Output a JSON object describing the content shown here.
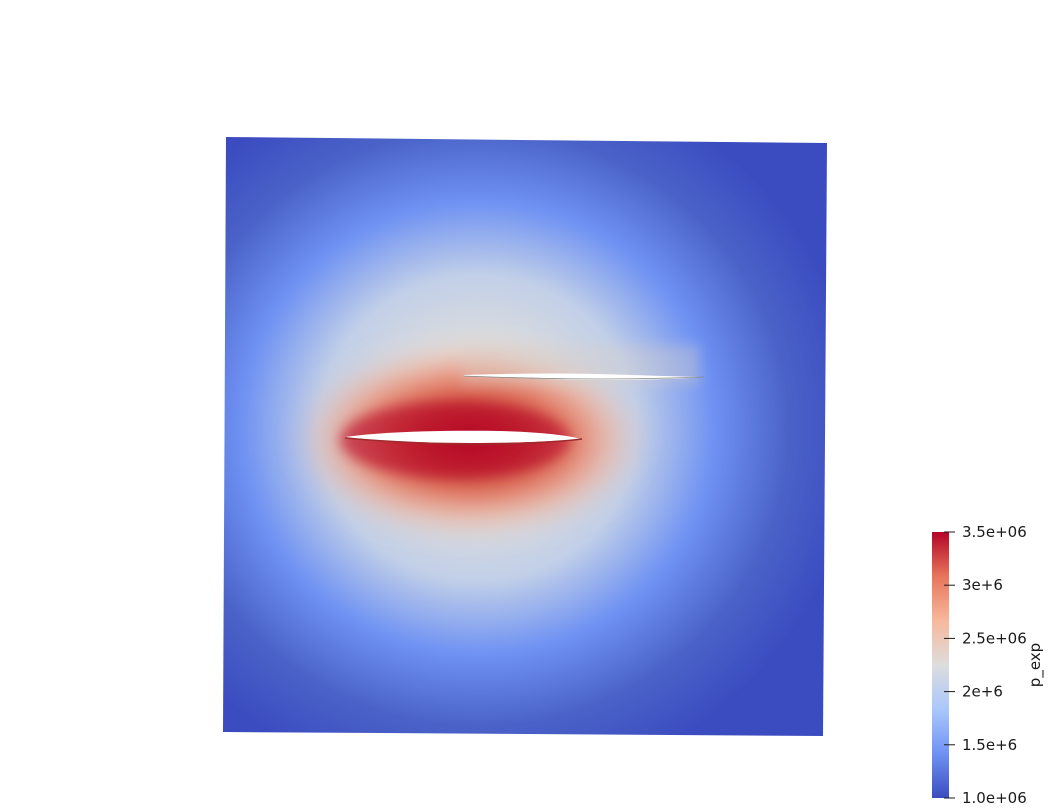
{
  "chart_data": {
    "type": "heatmap",
    "title": "",
    "colormap": {
      "name": "Cool to Warm",
      "stops": [
        "#3b4cc0",
        "#6f92f3",
        "#aac7fd",
        "#dddddd",
        "#f7b89c",
        "#e7755b",
        "#b40426"
      ]
    },
    "colorbar": {
      "title": "p_exp",
      "range": [
        1000000,
        3500000
      ],
      "ticks": [
        {
          "value": 3500000,
          "label": "3.5e+06"
        },
        {
          "value": 3000000,
          "label": "3e+6"
        },
        {
          "value": 2500000,
          "label": "2.5e+06"
        },
        {
          "value": 2000000,
          "label": "2e+6"
        },
        {
          "value": 1500000,
          "label": "1.5e+6"
        },
        {
          "value": 1000000,
          "label": "1.0e+06"
        }
      ]
    },
    "field": {
      "domain": "square",
      "peak_value": 3500000,
      "far_field_value": 1000000,
      "bodies": [
        "main-airfoil",
        "secondary-airfoil"
      ]
    }
  }
}
